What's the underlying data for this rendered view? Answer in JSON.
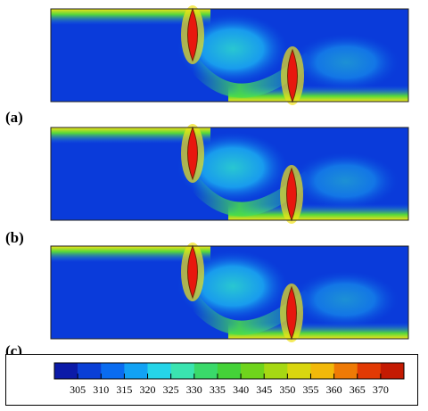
{
  "figure": {
    "panels": [
      {
        "label": "(a)"
      },
      {
        "label": "(b)"
      },
      {
        "label": "(c)"
      }
    ],
    "colorbar": {
      "ticks": [
        "305",
        "310",
        "315",
        "320",
        "325",
        "330",
        "335",
        "340",
        "345",
        "350",
        "355",
        "360",
        "365",
        "370"
      ],
      "colors": [
        "#0b1aa8",
        "#0a3fd6",
        "#0a6cf0",
        "#12a2f4",
        "#25d4e8",
        "#3ae4b0",
        "#3ad96a",
        "#44d238",
        "#6fd41c",
        "#a6d813",
        "#d9d60f",
        "#f2b90a",
        "#ee7a06",
        "#e23a04",
        "#c41a02"
      ]
    }
  }
}
